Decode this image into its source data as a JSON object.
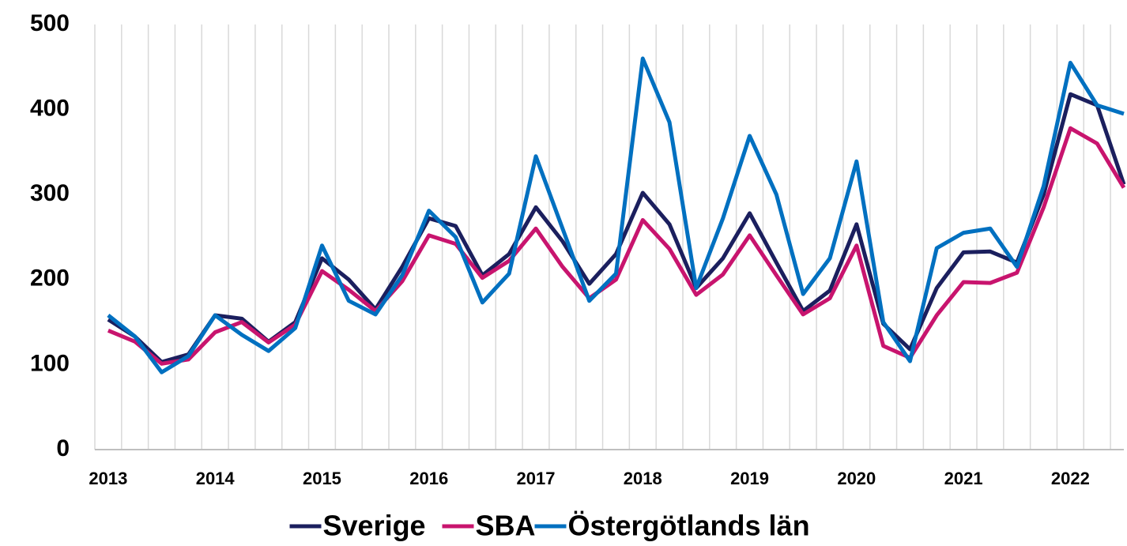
{
  "chart_data": {
    "type": "line",
    "categories": [
      "2013",
      null,
      null,
      null,
      "2014",
      null,
      null,
      null,
      "2015",
      null,
      null,
      null,
      "2016",
      null,
      null,
      null,
      "2017",
      null,
      null,
      null,
      "2018",
      null,
      null,
      null,
      "2019",
      null,
      null,
      null,
      "2020",
      null,
      null,
      null,
      "2021",
      null,
      null,
      null,
      "2022",
      null,
      null
    ],
    "series": [
      {
        "name": "Sverige",
        "color": "#1b1f5e",
        "values": [
          153,
          133,
          103,
          112,
          158,
          154,
          127,
          150,
          225,
          200,
          165,
          215,
          272,
          263,
          205,
          230,
          285,
          245,
          195,
          230,
          302,
          265,
          190,
          225,
          278,
          220,
          163,
          187,
          265,
          148,
          118,
          190,
          232,
          233,
          220,
          300,
          418,
          405,
          312
        ]
      },
      {
        "name": "SBA",
        "color": "#c8146e",
        "values": [
          140,
          127,
          101,
          106,
          138,
          150,
          126,
          147,
          210,
          188,
          163,
          198,
          252,
          242,
          202,
          222,
          260,
          215,
          178,
          200,
          270,
          236,
          182,
          206,
          252,
          205,
          159,
          178,
          240,
          122,
          108,
          158,
          197,
          196,
          208,
          285,
          378,
          360,
          308
        ]
      },
      {
        "name": "Östergötlands län",
        "color": "#0070c0",
        "values": [
          158,
          133,
          91,
          110,
          158,
          135,
          116,
          143,
          240,
          175,
          159,
          205,
          281,
          250,
          173,
          207,
          345,
          260,
          175,
          207,
          460,
          385,
          190,
          272,
          369,
          300,
          183,
          225,
          339,
          150,
          104,
          237,
          255,
          260,
          215,
          310,
          455,
          405,
          395
        ]
      }
    ],
    "ylim": [
      0,
      500
    ],
    "yticks": [
      0,
      100,
      200,
      300,
      400,
      500
    ],
    "grid": "x",
    "legend": "bottom"
  }
}
